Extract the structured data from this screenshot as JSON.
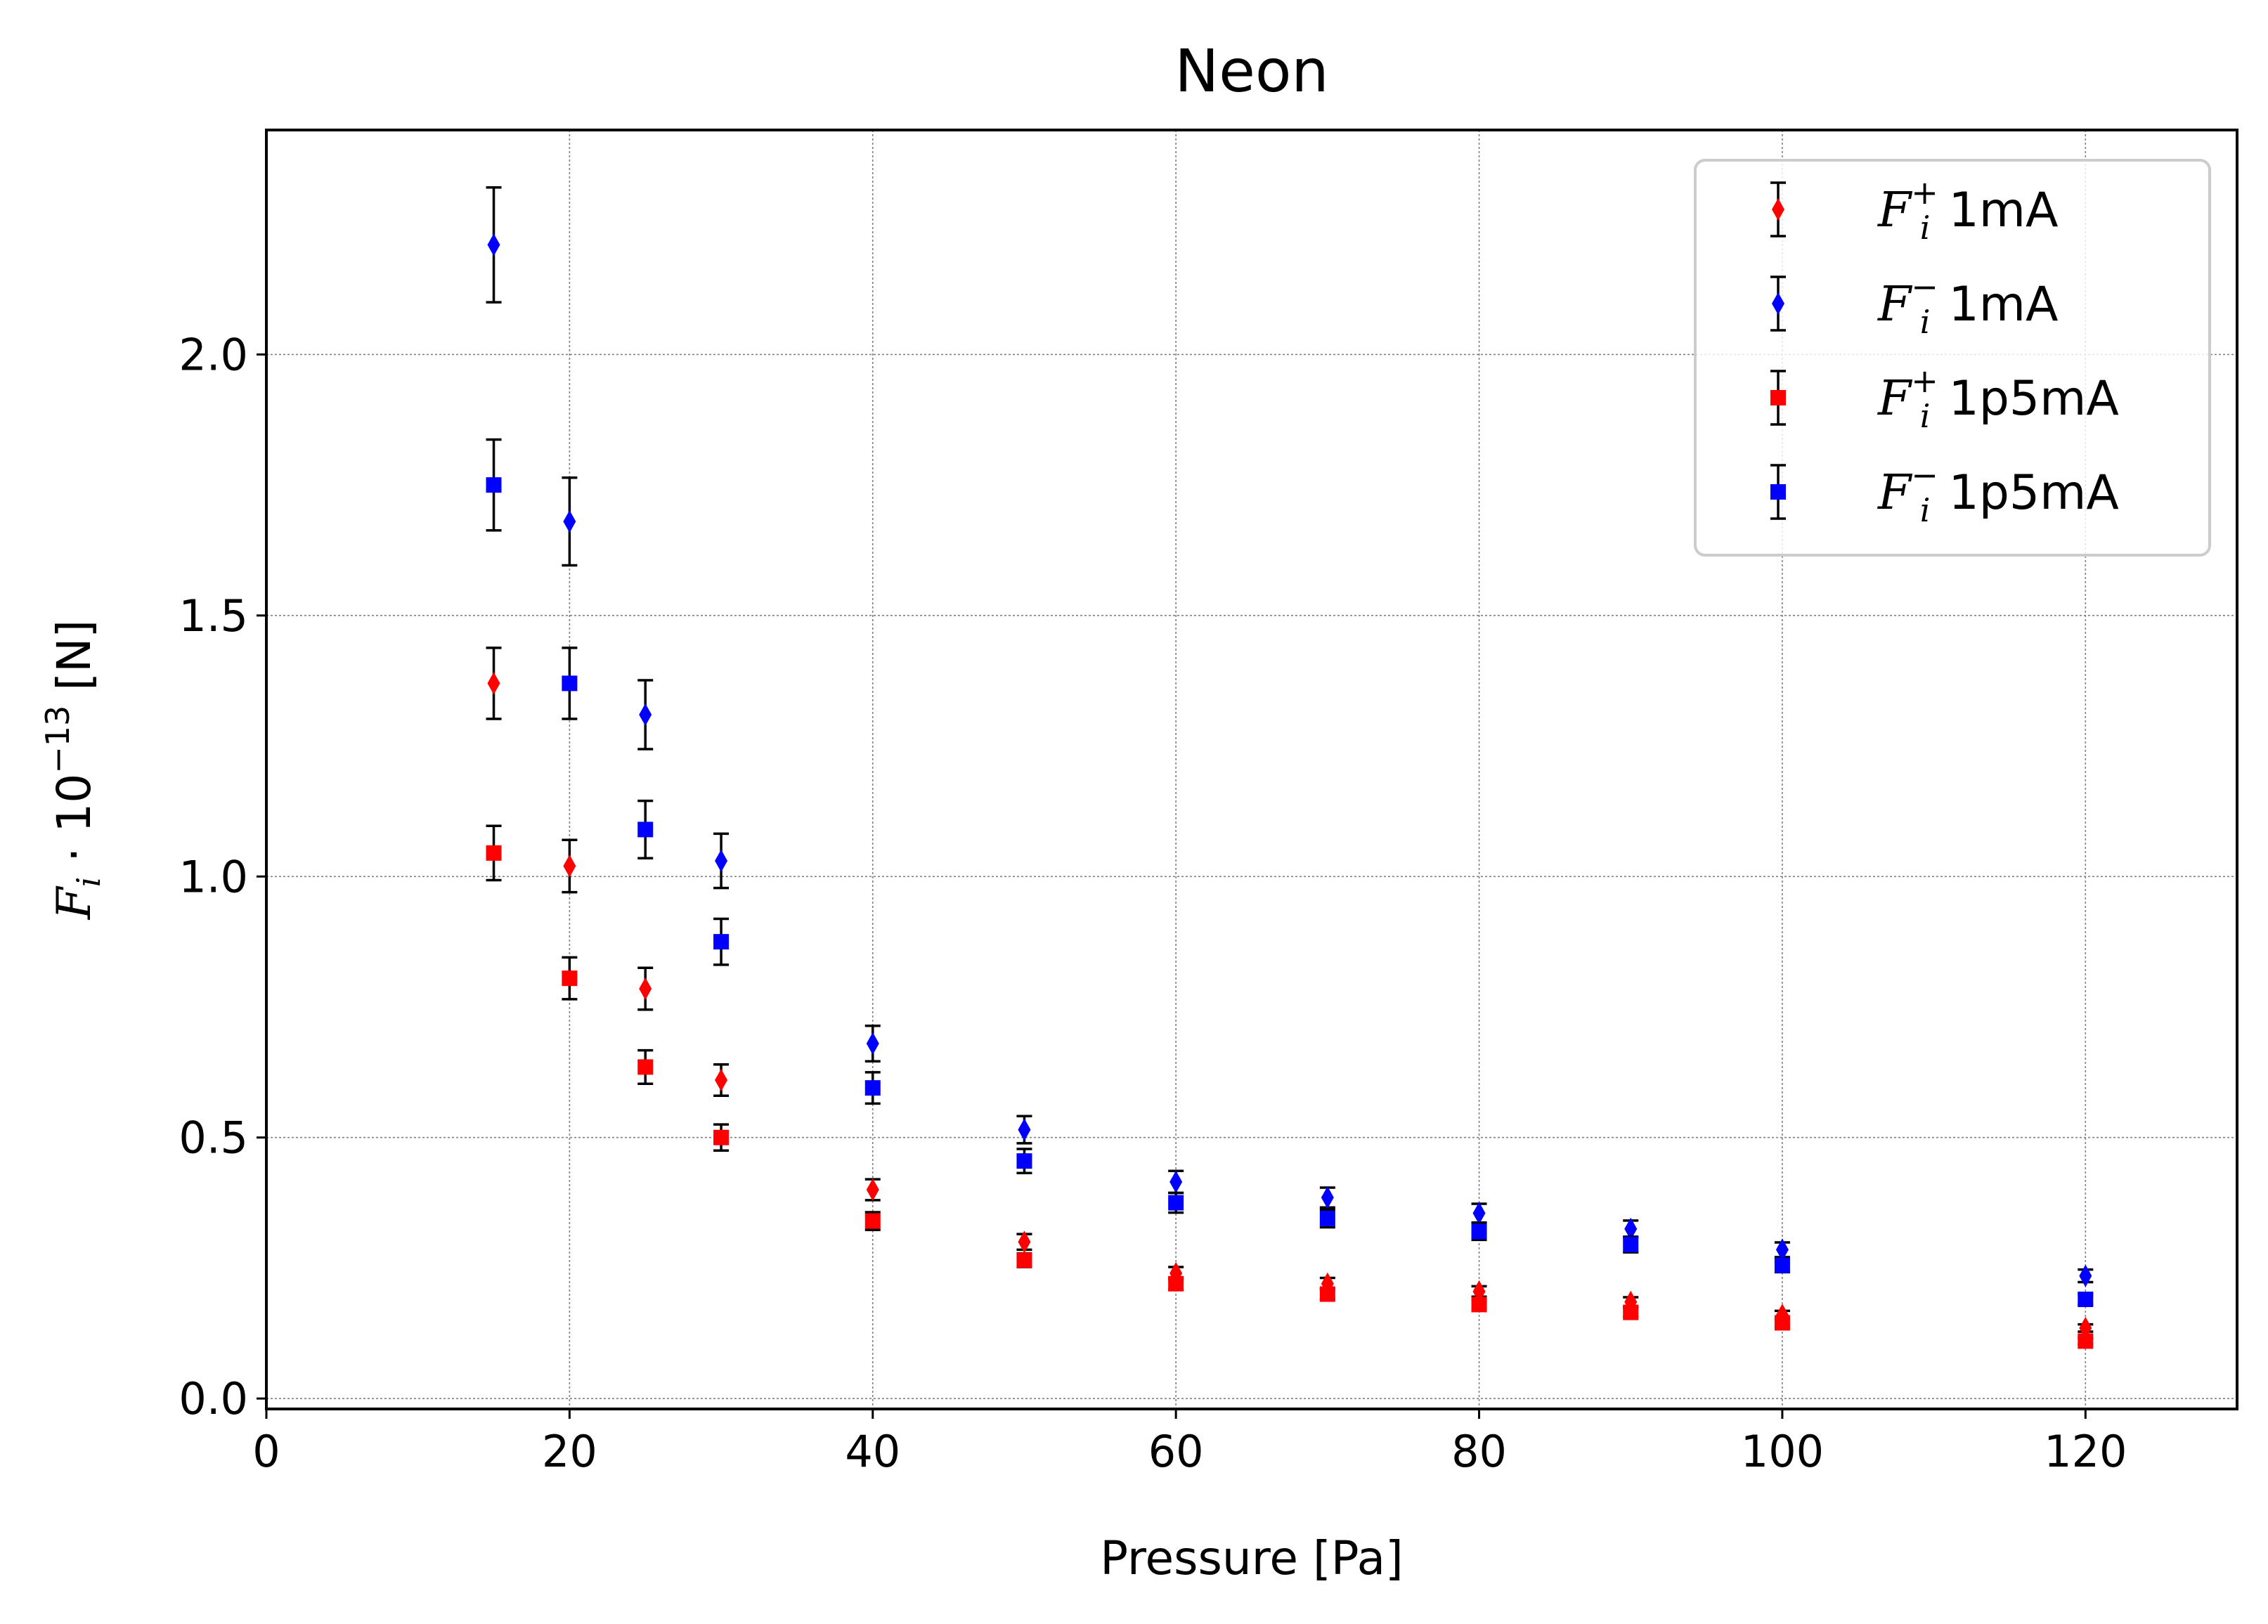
{
  "chart_data": {
    "type": "scatter",
    "title": "Neon",
    "xlabel": "Pressure [Pa]",
    "ylabel": "F_i · 10^−13 [N]",
    "ylabel_parts": {
      "sym": "F",
      "sub": "i",
      "dot": " · 10",
      "sup": "−13",
      "unit": " [N]"
    },
    "xlim": [
      0,
      130
    ],
    "ylim": [
      -0.02,
      2.43
    ],
    "xticks": [
      0,
      20,
      40,
      60,
      80,
      100,
      120
    ],
    "xtick_labels": [
      "0",
      "20",
      "40",
      "60",
      "80",
      "100",
      "120"
    ],
    "yticks": [
      0.0,
      0.5,
      1.0,
      1.5,
      2.0
    ],
    "ytick_labels": [
      "0.0",
      "0.5",
      "1.0",
      "1.5",
      "2.0"
    ],
    "grid": true,
    "legend_position": "top-right",
    "x": [
      15,
      20,
      25,
      30,
      40,
      50,
      60,
      70,
      80,
      90,
      100,
      120
    ],
    "series": [
      {
        "name": "F_i^+ 1mA",
        "label_parts": {
          "sym": "F",
          "sub": "i",
          "sup": "+",
          "rest": "1mA"
        },
        "color": "#ff0000",
        "marker": "diamond",
        "values": [
          1.37,
          1.02,
          0.785,
          0.61,
          0.4,
          0.3,
          0.24,
          0.22,
          0.205,
          0.185,
          0.16,
          0.135
        ],
        "errors": [
          0.068,
          0.05,
          0.04,
          0.03,
          0.02,
          0.015,
          0.012,
          0.011,
          0.01,
          0.009,
          0.008,
          0.007
        ]
      },
      {
        "name": "F_i^- 1mA",
        "label_parts": {
          "sym": "F",
          "sub": "i",
          "sup": "−",
          "rest": "1mA"
        },
        "color": "#0000ff",
        "marker": "diamond",
        "values": [
          2.21,
          1.68,
          1.31,
          1.03,
          0.68,
          0.515,
          0.415,
          0.385,
          0.355,
          0.325,
          0.285,
          0.235
        ],
        "errors": [
          0.11,
          0.084,
          0.066,
          0.052,
          0.034,
          0.026,
          0.021,
          0.019,
          0.018,
          0.016,
          0.014,
          0.012
        ]
      },
      {
        "name": "F_i^+ 1p5mA",
        "label_parts": {
          "sym": "F",
          "sub": "i",
          "sup": "+",
          "rest": "1p5mA"
        },
        "color": "#ff0000",
        "marker": "square",
        "values": [
          1.045,
          0.805,
          0.635,
          0.5,
          0.34,
          0.265,
          0.22,
          0.2,
          0.18,
          0.165,
          0.145,
          0.11
        ],
        "errors": [
          0.052,
          0.04,
          0.032,
          0.025,
          0.017,
          0.013,
          0.011,
          0.01,
          0.009,
          0.008,
          0.007,
          0.006
        ]
      },
      {
        "name": "F_i^- 1p5mA",
        "label_parts": {
          "sym": "F",
          "sub": "i",
          "sup": "−",
          "rest": "1p5mA"
        },
        "color": "#0000ff",
        "marker": "square",
        "values": [
          1.75,
          1.37,
          1.09,
          0.875,
          0.595,
          0.455,
          0.375,
          0.345,
          0.32,
          0.295,
          0.255,
          0.19
        ],
        "errors": [
          0.087,
          0.068,
          0.055,
          0.044,
          0.03,
          0.023,
          0.019,
          0.017,
          0.016,
          0.015,
          0.013,
          0.01
        ]
      }
    ]
  }
}
